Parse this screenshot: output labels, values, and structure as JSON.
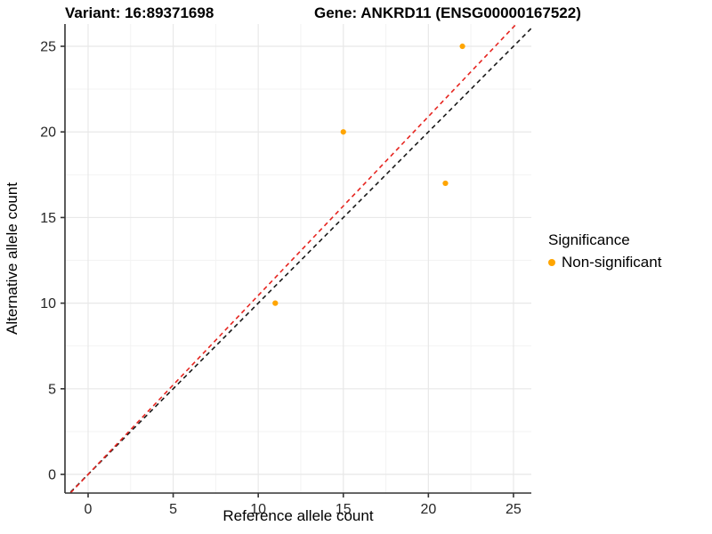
{
  "titles": {
    "variant": "Variant: 16:89371698",
    "gene": "Gene: ANKRD11 (ENSG00000167522)"
  },
  "chart_data": {
    "type": "scatter",
    "title_left": "Variant: 16:89371698",
    "title_right": "Gene: ANKRD11 (ENSG00000167522)",
    "xlabel": "Reference allele count",
    "ylabel": "Alternative allele count",
    "xlim": [
      -1.36,
      26.05
    ],
    "ylim": [
      -1.09,
      26.3
    ],
    "x_ticks": [
      0,
      5,
      10,
      15,
      20,
      25
    ],
    "y_ticks": [
      0,
      5,
      10,
      15,
      20,
      25
    ],
    "x_minor": [
      2.5,
      7.5,
      12.5,
      17.5,
      22.5
    ],
    "y_minor": [
      2.5,
      7.5,
      12.5,
      17.5,
      22.5
    ],
    "grid": true,
    "series": [
      {
        "name": "Non-significant",
        "color": "#FFA500",
        "points": [
          [
            11,
            10
          ],
          [
            15,
            20
          ],
          [
            21,
            17
          ],
          [
            22,
            25
          ]
        ]
      }
    ],
    "reference_lines": [
      {
        "name": "identity-line",
        "slope": 1.0,
        "intercept": 0,
        "color": "#1A1A1A",
        "style": "dashed"
      },
      {
        "name": "expected-ratio-line",
        "slope": 1.045,
        "intercept": 0,
        "color": "#E62520",
        "style": "dashed"
      }
    ],
    "legend": {
      "title": "Significance",
      "position": "right",
      "items": [
        {
          "label": "Non-significant",
          "color": "#FFA500"
        }
      ]
    },
    "style": {
      "grid_major": "#E8E8E8",
      "grid_minor": "#F3F3F3",
      "axis_color": "#333333",
      "tick_label_color": "#262626"
    }
  }
}
